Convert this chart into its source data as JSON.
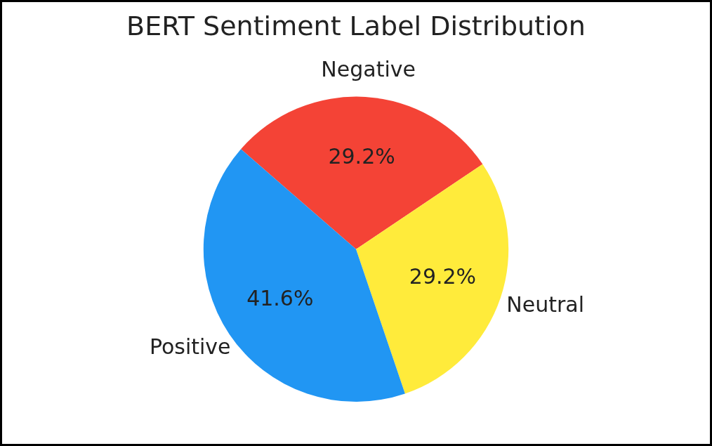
{
  "chart_data": {
    "type": "pie",
    "title": "BERT Sentiment Label Distribution",
    "categories": [
      "Negative",
      "Neutral",
      "Positive"
    ],
    "values": [
      29.2,
      29.2,
      41.6
    ],
    "colors": [
      "#f44336",
      "#ffeb3b",
      "#2196f3"
    ],
    "value_labels": [
      "29.2%",
      "29.2%",
      "41.6%"
    ],
    "legend": false
  }
}
